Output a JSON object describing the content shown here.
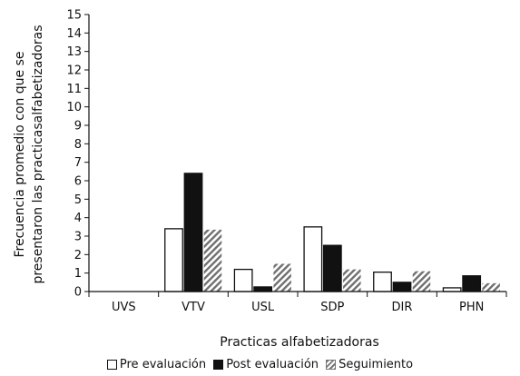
{
  "chart_data": {
    "type": "bar",
    "categories": [
      "UVS",
      "VTV",
      "USL",
      "SDP",
      "DIR",
      "PHN"
    ],
    "series": [
      {
        "name": "Pre evaluación",
        "values": [
          0,
          3.4,
          1.2,
          3.5,
          1.05,
          0.2
        ],
        "color": "#ffffff",
        "style": "outline"
      },
      {
        "name": "Post evaluación",
        "values": [
          0,
          6.4,
          0.25,
          2.5,
          0.5,
          0.85
        ],
        "color": "#111111",
        "style": "solid"
      },
      {
        "name": "Seguimiento",
        "values": [
          0,
          3.35,
          1.5,
          1.2,
          1.1,
          0.45
        ],
        "color": "#777777",
        "style": "hatched"
      }
    ],
    "ylim": [
      0,
      15
    ],
    "yticks": [
      "0",
      "1",
      "2",
      "3",
      "4",
      "5",
      "6",
      "7",
      "8",
      "9",
      "10",
      "11",
      "12",
      "13",
      "14",
      "15"
    ],
    "ylabel_line1": "Frecuencia promedio con que se",
    "ylabel_line2": "presentaron las practicasalfabetizadoras",
    "xlabel": "Practicas alfabetizadoras",
    "grid": false,
    "legend_position": "bottom"
  }
}
